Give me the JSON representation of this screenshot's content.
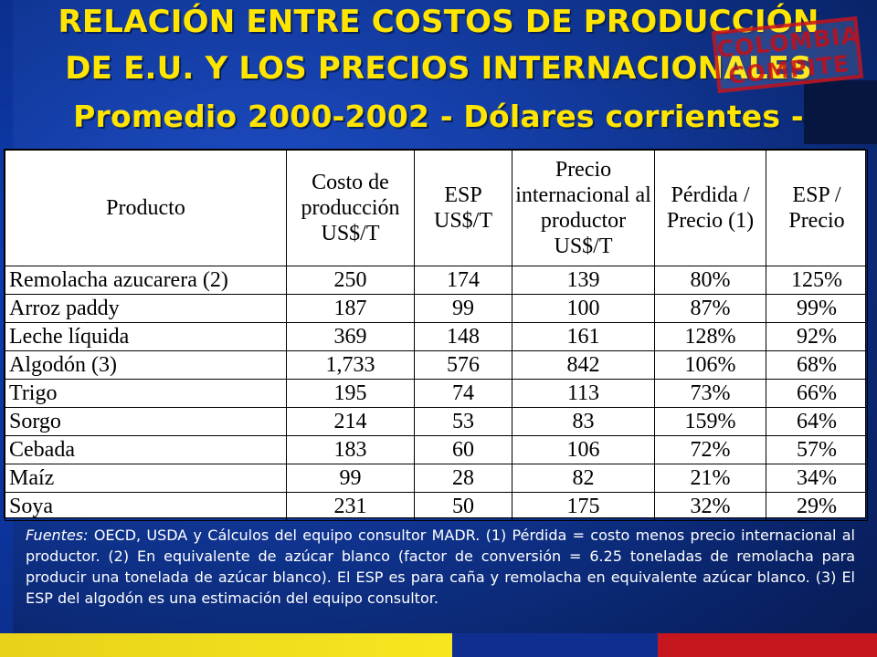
{
  "title": {
    "line1": "RELACIÓN ENTRE COSTOS DE PRODUCCIÓN",
    "line2": "DE E.U. Y LOS PRECIOS INTERNACIONALES",
    "line3": "Promedio 2000-2002 - Dólares corrientes -"
  },
  "stamp": {
    "line1": "COLOMBIA",
    "line2": "COMPITE"
  },
  "table": {
    "headers": [
      "Producto",
      "Costo de producción US$/T",
      "ESP US$/T",
      "Precio internacional al productor US$/T",
      "Pérdida / Precio (1)",
      "ESP / Precio"
    ],
    "rows": [
      [
        "Remolacha azucarera (2)",
        "250",
        "174",
        "139",
        "80%",
        "125%"
      ],
      [
        "Arroz paddy",
        "187",
        "99",
        "100",
        "87%",
        "99%"
      ],
      [
        "Leche líquida",
        "369",
        "148",
        "161",
        "128%",
        "92%"
      ],
      [
        "Algodón (3)",
        "1,733",
        "576",
        "842",
        "106%",
        "68%"
      ],
      [
        "Trigo",
        "195",
        "74",
        "113",
        "73%",
        "66%"
      ],
      [
        "Sorgo",
        "214",
        "53",
        "83",
        "159%",
        "64%"
      ],
      [
        "Cebada",
        "183",
        "60",
        "106",
        "72%",
        "57%"
      ],
      [
        "Maíz",
        "99",
        "28",
        "82",
        "21%",
        "34%"
      ],
      [
        "Soya",
        "231",
        "50",
        "175",
        "32%",
        "29%"
      ]
    ]
  },
  "notes": {
    "lead": "Fuentes:",
    "body": " OECD, USDA y Cálculos del equipo consultor MADR. (1) Pérdida = costo menos precio internacional al productor. (2) En equivalente de azúcar blanco (factor de conversión = 6.25 toneladas de remolacha para producir una tonelada de azúcar blanco). El ESP es para caña y remolacha en equivalente azúcar blanco. (3) El ESP del algodón es una estimación del equipo consultor."
  },
  "colors": {
    "title": "#ffe500",
    "background": "#123a9e",
    "strip_yellow": "#f6e61f",
    "strip_blue": "#0e2f8f",
    "strip_red": "#c4161c"
  }
}
